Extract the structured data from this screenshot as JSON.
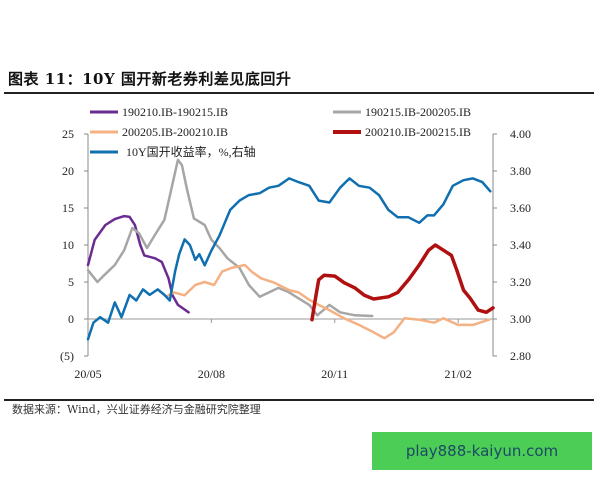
{
  "title": "图表 11：10Y 国开新老券利差见底回升",
  "source": "数据来源：Wind，兴业证券经济与金融研究院整理",
  "watermark": "play888-kaiyun.com",
  "chart_data": {
    "type": "line",
    "title": "",
    "xlabel": "",
    "ylabel": "",
    "x_range": [
      "2020-05-01",
      "2021-02-27"
    ],
    "x_ticks": [
      {
        "date": "2020-05-01",
        "label": "20/05"
      },
      {
        "date": "2020-08-01",
        "label": "20/08"
      },
      {
        "date": "2020-11-01",
        "label": "20/11"
      },
      {
        "date": "2021-02-01",
        "label": "21/02"
      }
    ],
    "ylim_left": [
      -5,
      25
    ],
    "left_ticks": [
      {
        "v": 25,
        "label": "25"
      },
      {
        "v": 20,
        "label": "20"
      },
      {
        "v": 15,
        "label": "15"
      },
      {
        "v": 10,
        "label": "10"
      },
      {
        "v": 5,
        "label": "5"
      },
      {
        "v": 0,
        "label": "0"
      },
      {
        "v": -5,
        "label": "(5)"
      }
    ],
    "ylim_right": [
      2.8,
      4.0
    ],
    "right_ticks": [
      {
        "v": 4.0,
        "label": "4.00"
      },
      {
        "v": 3.8,
        "label": "3.80"
      },
      {
        "v": 3.6,
        "label": "3.60"
      },
      {
        "v": 3.4,
        "label": "3.40"
      },
      {
        "v": 3.2,
        "label": "3.20"
      },
      {
        "v": 3.0,
        "label": "3.00"
      },
      {
        "v": 2.8,
        "label": "2.80"
      }
    ],
    "negative_label_color": "#c00000",
    "grid": false,
    "legend_position": "top",
    "series": [
      {
        "name": "190210.IB-190215.IB",
        "axis": "left",
        "color": "#6a2c91",
        "width": 2.5,
        "points": [
          [
            "2020-05-01",
            7.3
          ],
          [
            "2020-05-06",
            10.7
          ],
          [
            "2020-05-14",
            12.7
          ],
          [
            "2020-05-21",
            13.5
          ],
          [
            "2020-05-28",
            13.9
          ],
          [
            "2020-06-01",
            13.8
          ],
          [
            "2020-06-05",
            12.7
          ],
          [
            "2020-06-09",
            10
          ],
          [
            "2020-06-12",
            8.6
          ],
          [
            "2020-06-20",
            8.2
          ],
          [
            "2020-06-25",
            7.7
          ],
          [
            "2020-06-30",
            5.5
          ],
          [
            "2020-07-03",
            3.2
          ],
          [
            "2020-07-07",
            1.9
          ],
          [
            "2020-07-15",
            0.9
          ]
        ]
      },
      {
        "name": "190215.IB-200205.IB",
        "axis": "left",
        "color": "#a6a6a6",
        "width": 2.5,
        "points": [
          [
            "2020-05-01",
            6.6
          ],
          [
            "2020-05-08",
            5
          ],
          [
            "2020-05-13",
            5.9
          ],
          [
            "2020-05-21",
            7.3
          ],
          [
            "2020-05-28",
            9.3
          ],
          [
            "2020-06-03",
            12.3
          ],
          [
            "2020-06-08",
            11.6
          ],
          [
            "2020-06-14",
            9.6
          ],
          [
            "2020-06-20",
            11.4
          ],
          [
            "2020-06-27",
            13.4
          ],
          [
            "2020-07-02",
            17.4
          ],
          [
            "2020-07-07",
            21.5
          ],
          [
            "2020-07-10",
            20.8
          ],
          [
            "2020-07-14",
            17.4
          ],
          [
            "2020-07-19",
            13.6
          ],
          [
            "2020-07-27",
            12.7
          ],
          [
            "2020-08-01",
            10.7
          ],
          [
            "2020-08-07",
            9.6
          ],
          [
            "2020-08-13",
            8.2
          ],
          [
            "2020-08-22",
            6.9
          ],
          [
            "2020-08-29",
            4.6
          ],
          [
            "2020-09-06",
            3
          ],
          [
            "2020-09-13",
            3.6
          ],
          [
            "2020-09-20",
            4.2
          ],
          [
            "2020-09-28",
            3.6
          ],
          [
            "2020-10-05",
            2.8
          ],
          [
            "2020-10-13",
            1.9
          ],
          [
            "2020-10-19",
            0.5
          ],
          [
            "2020-10-28",
            1.9
          ],
          [
            "2020-11-05",
            0.9
          ],
          [
            "2020-11-16",
            0.5
          ],
          [
            "2020-11-29",
            0.4
          ]
        ]
      },
      {
        "name": "200205.IB-200210.IB",
        "axis": "left",
        "color": "#f4b183",
        "width": 2.5,
        "points": [
          [
            "2020-06-29",
            3.1
          ],
          [
            "2020-07-04",
            3.6
          ],
          [
            "2020-07-12",
            3.2
          ],
          [
            "2020-07-20",
            4.6
          ],
          [
            "2020-07-27",
            5
          ],
          [
            "2020-08-03",
            4.6
          ],
          [
            "2020-08-09",
            6.4
          ],
          [
            "2020-08-16",
            6.9
          ],
          [
            "2020-08-26",
            7.3
          ],
          [
            "2020-08-31",
            6.4
          ],
          [
            "2020-09-07",
            5.5
          ],
          [
            "2020-09-17",
            4.9
          ],
          [
            "2020-09-28",
            3.9
          ],
          [
            "2020-10-05",
            3.6
          ],
          [
            "2020-10-13",
            2.6
          ],
          [
            "2020-10-20",
            1.9
          ],
          [
            "2020-10-28",
            1.2
          ],
          [
            "2020-11-08",
            0.1
          ],
          [
            "2020-11-19",
            -0.8
          ],
          [
            "2020-11-30",
            -1.8
          ],
          [
            "2020-12-08",
            -2.6
          ],
          [
            "2020-12-15",
            -1.8
          ],
          [
            "2020-12-23",
            0.1
          ],
          [
            "2021-01-03",
            -0.1
          ],
          [
            "2021-01-14",
            -0.5
          ],
          [
            "2021-01-21",
            0.1
          ],
          [
            "2021-02-01",
            -0.8
          ],
          [
            "2021-02-12",
            -0.8
          ],
          [
            "2021-02-24",
            -0.1
          ]
        ]
      },
      {
        "name": "200210.IB-200215.IB",
        "axis": "left",
        "color": "#b01010",
        "width": 3.5,
        "points": [
          [
            "2020-10-15",
            -0.1
          ],
          [
            "2020-10-18",
            3.2
          ],
          [
            "2020-10-20",
            5.3
          ],
          [
            "2020-10-24",
            5.9
          ],
          [
            "2020-11-01",
            5.8
          ],
          [
            "2020-11-08",
            4.9
          ],
          [
            "2020-11-16",
            4.2
          ],
          [
            "2020-11-23",
            3.2
          ],
          [
            "2020-11-30",
            2.7
          ],
          [
            "2020-12-11",
            3
          ],
          [
            "2020-12-18",
            3.6
          ],
          [
            "2020-12-26",
            5.3
          ],
          [
            "2021-01-03",
            7.3
          ],
          [
            "2021-01-10",
            9.3
          ],
          [
            "2021-01-15",
            10
          ],
          [
            "2021-01-21",
            9.3
          ],
          [
            "2021-01-27",
            8.6
          ],
          [
            "2021-01-31",
            6.6
          ],
          [
            "2021-02-05",
            3.9
          ],
          [
            "2021-02-10",
            2.8
          ],
          [
            "2021-02-16",
            1.2
          ],
          [
            "2021-02-22",
            0.9
          ],
          [
            "2021-02-27",
            1.5
          ]
        ]
      },
      {
        "name": "10Y国开收益率，%,右轴",
        "axis": "right",
        "color": "#0f6fb0",
        "width": 2.5,
        "points": [
          [
            "2020-05-01",
            2.89
          ],
          [
            "2020-05-05",
            2.98
          ],
          [
            "2020-05-10",
            3.01
          ],
          [
            "2020-05-16",
            2.98
          ],
          [
            "2020-05-21",
            3.09
          ],
          [
            "2020-05-26",
            3.01
          ],
          [
            "2020-06-01",
            3.13
          ],
          [
            "2020-06-06",
            3.1
          ],
          [
            "2020-06-11",
            3.16
          ],
          [
            "2020-06-16",
            3.13
          ],
          [
            "2020-06-22",
            3.16
          ],
          [
            "2020-06-27",
            3.13
          ],
          [
            "2020-07-01",
            3.1
          ],
          [
            "2020-07-05",
            3.26
          ],
          [
            "2020-07-08",
            3.35
          ],
          [
            "2020-07-12",
            3.43
          ],
          [
            "2020-07-16",
            3.4
          ],
          [
            "2020-07-20",
            3.32
          ],
          [
            "2020-07-23",
            3.35
          ],
          [
            "2020-07-27",
            3.29
          ],
          [
            "2020-08-01",
            3.37
          ],
          [
            "2020-08-07",
            3.45
          ],
          [
            "2020-08-15",
            3.59
          ],
          [
            "2020-08-22",
            3.64
          ],
          [
            "2020-08-29",
            3.67
          ],
          [
            "2020-09-06",
            3.68
          ],
          [
            "2020-09-13",
            3.71
          ],
          [
            "2020-09-20",
            3.72
          ],
          [
            "2020-09-28",
            3.76
          ],
          [
            "2020-10-05",
            3.74
          ],
          [
            "2020-10-13",
            3.72
          ],
          [
            "2020-10-20",
            3.64
          ],
          [
            "2020-10-28",
            3.63
          ],
          [
            "2020-11-05",
            3.71
          ],
          [
            "2020-11-12",
            3.76
          ],
          [
            "2020-11-19",
            3.72
          ],
          [
            "2020-11-27",
            3.71
          ],
          [
            "2020-12-04",
            3.67
          ],
          [
            "2020-12-11",
            3.59
          ],
          [
            "2020-12-18",
            3.55
          ],
          [
            "2020-12-26",
            3.55
          ],
          [
            "2021-01-03",
            3.52
          ],
          [
            "2021-01-09",
            3.56
          ],
          [
            "2021-01-14",
            3.56
          ],
          [
            "2021-01-21",
            3.62
          ],
          [
            "2021-01-28",
            3.72
          ],
          [
            "2021-02-05",
            3.75
          ],
          [
            "2021-02-12",
            3.76
          ],
          [
            "2021-02-19",
            3.74
          ],
          [
            "2021-02-25",
            3.69
          ]
        ]
      }
    ]
  }
}
